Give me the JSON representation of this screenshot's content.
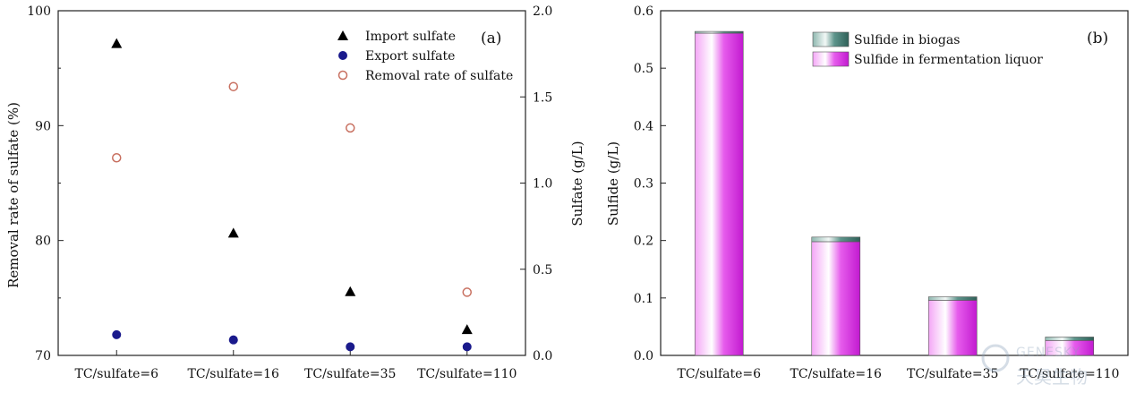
{
  "chart_data": [
    {
      "type": "scatter",
      "panel_label": "(a)",
      "categories": [
        "TC/sulfate=6",
        "TC/sulfate=16",
        "TC/sulfate=35",
        "TC/sulfate=110"
      ],
      "ylabel": "Removal rate of sulfate (%)",
      "ylim": [
        70,
        100
      ],
      "yticks": [
        70,
        80,
        90,
        100
      ],
      "y2label": "Sulfate (g/L)",
      "y2lim": [
        0.0,
        2.0
      ],
      "y2ticks": [
        "0.0",
        "0.5",
        "1.0",
        "1.5",
        "2.0"
      ],
      "legend_position": "top-right",
      "series": [
        {
          "name": "Import sulfate",
          "axis": "right",
          "marker": "triangle",
          "color": "#000000",
          "values": [
            1.81,
            0.71,
            0.37,
            0.15
          ]
        },
        {
          "name": "Export sulfate",
          "axis": "right",
          "marker": "circle-filled",
          "color": "#1a1a8c",
          "values": [
            0.12,
            0.09,
            0.05,
            0.05
          ]
        },
        {
          "name": "Removal rate of sulfate",
          "axis": "left",
          "marker": "circle-open",
          "color": "#c87060",
          "values": [
            87.2,
            93.4,
            89.8,
            75.5
          ]
        }
      ]
    },
    {
      "type": "bar",
      "stacked": true,
      "panel_label": "(b)",
      "categories": [
        "TC/sulfate=6",
        "TC/sulfate=16",
        "TC/sulfate=35",
        "TC/sulfate=110"
      ],
      "ylabel": "Sulfide (g/L)",
      "ylim": [
        0.0,
        0.6
      ],
      "yticks": [
        "0.0",
        "0.1",
        "0.2",
        "0.3",
        "0.4",
        "0.5",
        "0.6"
      ],
      "legend_position": "top-right",
      "series": [
        {
          "name": "Sulfide in fermentation liquor",
          "color": "#e040e8",
          "values": [
            0.561,
            0.198,
            0.096,
            0.026
          ]
        },
        {
          "name": "Sulfide in biogas",
          "color": "#4e8a80",
          "values": [
            0.003,
            0.008,
            0.006,
            0.006
          ]
        }
      ]
    }
  ],
  "watermark": {
    "text_en": "GENESKY",
    "text_cn": "天昊生物"
  }
}
